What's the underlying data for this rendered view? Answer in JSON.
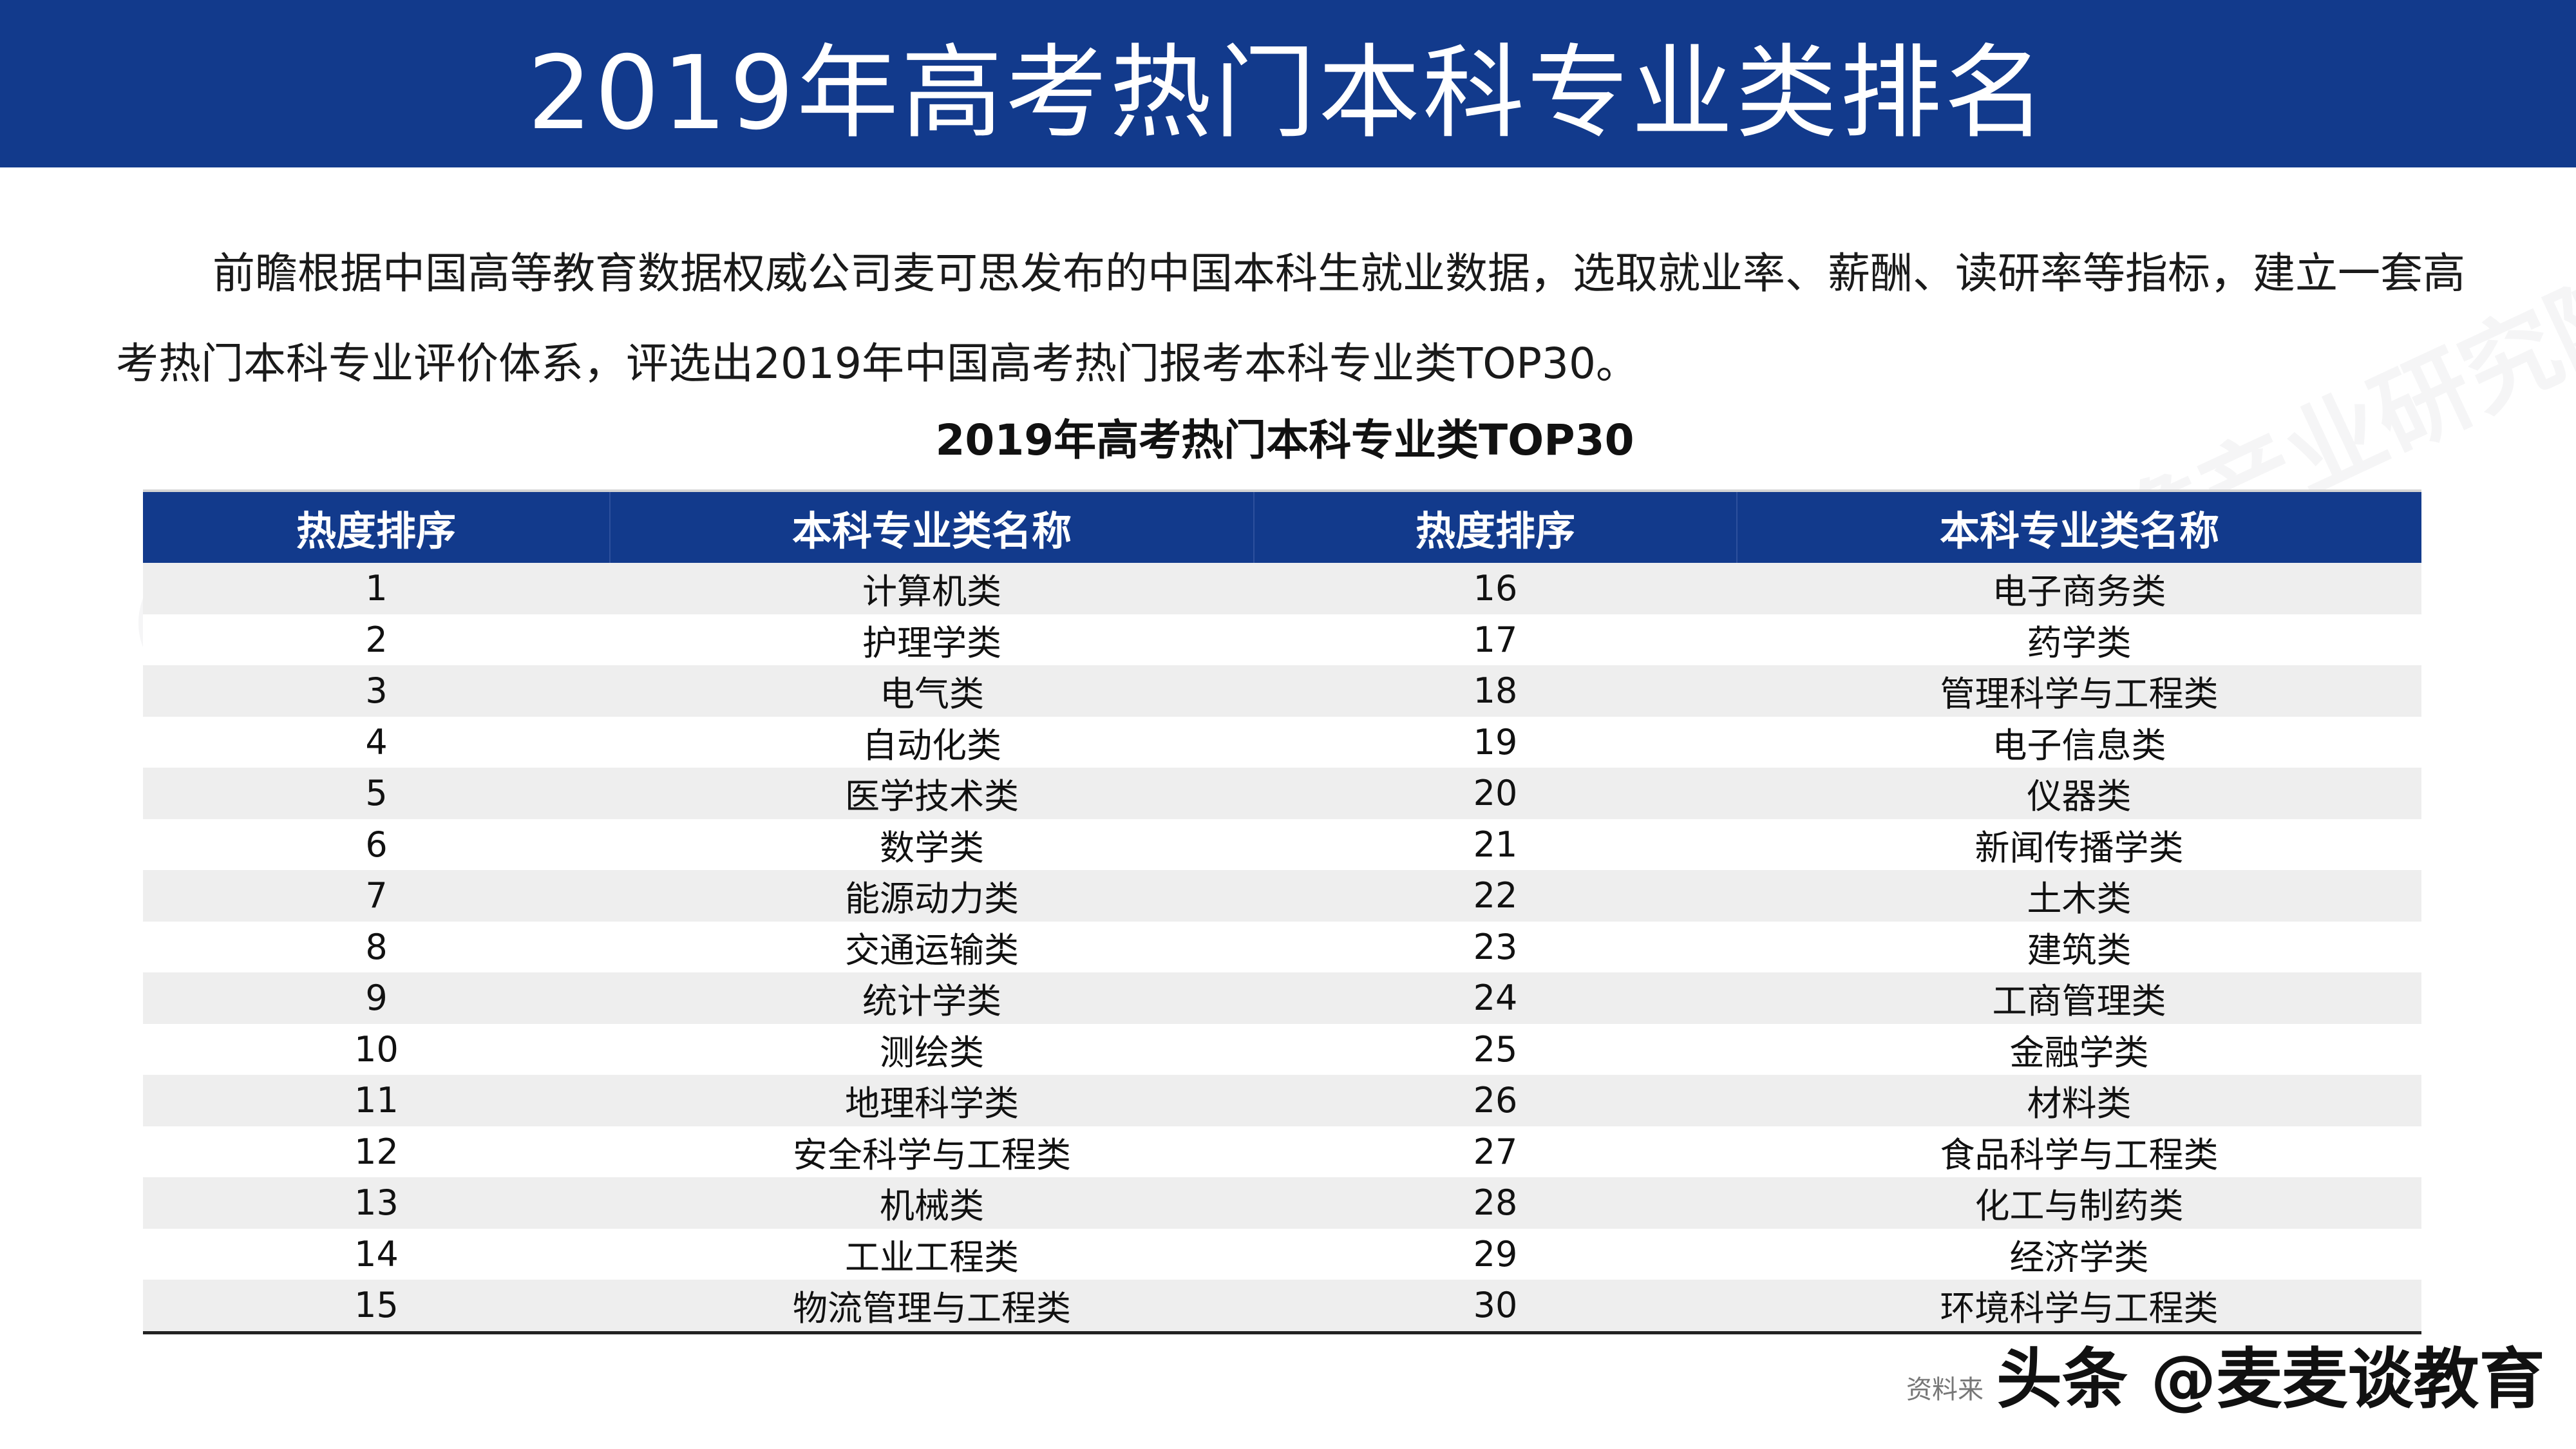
{
  "header": {
    "title": "2019年高考热门本科专业类排名"
  },
  "intro": {
    "text": "前瞻根据中国高等教育数据权威公司麦可思发布的中国本科生就业数据，选取就业率、薪酬、读研率等指标，建立一套高考热门本科专业评价体系，评选出2019年中国高考热门报考本科专业类TOP30。"
  },
  "table": {
    "title": "2019年高考热门本科专业类TOP30",
    "headers": [
      "热度排序",
      "本科专业类名称",
      "热度排序",
      "本科专业类名称"
    ],
    "rows": [
      [
        "1",
        "计算机类",
        "16",
        "电子商务类"
      ],
      [
        "2",
        "护理学类",
        "17",
        "药学类"
      ],
      [
        "3",
        "电气类",
        "18",
        "管理科学与工程类"
      ],
      [
        "4",
        "自动化类",
        "19",
        "电子信息类"
      ],
      [
        "5",
        "医学技术类",
        "20",
        "仪器类"
      ],
      [
        "6",
        "数学类",
        "21",
        "新闻传播学类"
      ],
      [
        "7",
        "能源动力类",
        "22",
        "土木类"
      ],
      [
        "8",
        "交通运输类",
        "23",
        "建筑类"
      ],
      [
        "9",
        "统计学类",
        "24",
        "工商管理类"
      ],
      [
        "10",
        "测绘类",
        "25",
        "金融学类"
      ],
      [
        "11",
        "地理科学类",
        "26",
        "材料类"
      ],
      [
        "12",
        "安全科学与工程类",
        "27",
        "食品科学与工程类"
      ],
      [
        "13",
        "机械类",
        "28",
        "化工与制药类"
      ],
      [
        "14",
        "工业工程类",
        "29",
        "经济学类"
      ],
      [
        "15",
        "物流管理与工程类",
        "30",
        "环境科学与工程类"
      ]
    ]
  },
  "footer": {
    "source": "资料来",
    "badge": "头条 @麦麦谈教育"
  },
  "watermark": {
    "text": "前瞻产业研究院"
  },
  "colors": {
    "header_bg": "#123a8c",
    "stripe": "#eeeeee"
  }
}
